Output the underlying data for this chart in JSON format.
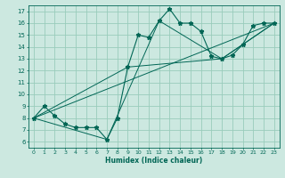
{
  "xlabel": "Humidex (Indice chaleur)",
  "bg_color": "#cce8e0",
  "grid_color": "#99ccbb",
  "line_color": "#006655",
  "xlim": [
    -0.5,
    23.5
  ],
  "ylim": [
    5.5,
    17.5
  ],
  "xticks": [
    0,
    1,
    2,
    3,
    4,
    5,
    6,
    7,
    8,
    9,
    10,
    11,
    12,
    13,
    14,
    15,
    16,
    17,
    18,
    19,
    20,
    21,
    22,
    23
  ],
  "yticks": [
    6,
    7,
    8,
    9,
    10,
    11,
    12,
    13,
    14,
    15,
    16,
    17
  ],
  "series": [
    [
      0,
      8
    ],
    [
      1,
      9
    ],
    [
      2,
      8.2
    ],
    [
      3,
      7.5
    ],
    [
      4,
      7.2
    ],
    [
      5,
      7.2
    ],
    [
      6,
      7.2
    ],
    [
      7,
      6.2
    ],
    [
      8,
      8.0
    ],
    [
      9,
      12.3
    ],
    [
      10,
      15.0
    ],
    [
      11,
      14.8
    ],
    [
      12,
      16.2
    ],
    [
      13,
      17.2
    ],
    [
      14,
      16.0
    ],
    [
      15,
      16.0
    ],
    [
      16,
      15.3
    ],
    [
      17,
      13.2
    ],
    [
      18,
      13.0
    ],
    [
      19,
      13.3
    ],
    [
      20,
      14.2
    ],
    [
      21,
      15.8
    ],
    [
      22,
      16.0
    ],
    [
      23,
      16.0
    ]
  ],
  "line2": [
    [
      0,
      8
    ],
    [
      7,
      6.2
    ],
    [
      12,
      16.2
    ],
    [
      18,
      13.0
    ],
    [
      23,
      16.0
    ]
  ],
  "line3": [
    [
      0,
      8
    ],
    [
      23,
      16.0
    ]
  ],
  "line4": [
    [
      0,
      8
    ],
    [
      9,
      12.3
    ],
    [
      18,
      13.0
    ],
    [
      23,
      16.0
    ]
  ]
}
